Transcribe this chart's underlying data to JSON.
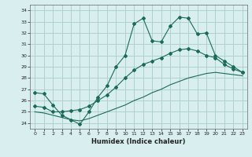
{
  "xlabel": "Humidex (Indice chaleur)",
  "xlim": [
    -0.5,
    23.5
  ],
  "ylim": [
    23.5,
    34.5
  ],
  "xticks": [
    0,
    1,
    2,
    3,
    4,
    5,
    6,
    7,
    8,
    9,
    10,
    11,
    12,
    13,
    14,
    15,
    16,
    17,
    18,
    19,
    20,
    21,
    22,
    23
  ],
  "yticks": [
    24,
    25,
    26,
    27,
    28,
    29,
    30,
    31,
    32,
    33,
    34
  ],
  "bg_color": "#d9eeee",
  "grid_color": "#b0d0d0",
  "line_color": "#1a6b5a",
  "line1_x": [
    0,
    1,
    2,
    3,
    4,
    5,
    6,
    7,
    8,
    9,
    10,
    11,
    12,
    13,
    14,
    15,
    16,
    17,
    18,
    19,
    20,
    21,
    22,
    23
  ],
  "line1_y": [
    26.7,
    26.6,
    25.6,
    24.7,
    24.3,
    23.9,
    25.0,
    26.3,
    27.3,
    29.0,
    30.0,
    32.8,
    33.3,
    31.3,
    31.2,
    32.6,
    33.4,
    33.3,
    31.9,
    32.0,
    30.0,
    29.5,
    29.0,
    28.5
  ],
  "line2_x": [
    0,
    1,
    2,
    3,
    4,
    5,
    6,
    7,
    8,
    9,
    10,
    11,
    12,
    13,
    14,
    15,
    16,
    17,
    18,
    19,
    20,
    21,
    22,
    23
  ],
  "line2_y": [
    25.5,
    25.4,
    25.0,
    25.0,
    25.1,
    25.2,
    25.5,
    26.0,
    26.5,
    27.2,
    28.0,
    28.7,
    29.2,
    29.5,
    29.8,
    30.2,
    30.5,
    30.6,
    30.4,
    30.0,
    29.8,
    29.2,
    28.8,
    28.5
  ],
  "line3_x": [
    0,
    1,
    2,
    3,
    4,
    5,
    6,
    7,
    8,
    9,
    10,
    11,
    12,
    13,
    14,
    15,
    16,
    17,
    18,
    19,
    20,
    21,
    22,
    23
  ],
  "line3_y": [
    25.0,
    24.9,
    24.7,
    24.5,
    24.3,
    24.2,
    24.4,
    24.7,
    25.0,
    25.3,
    25.6,
    26.0,
    26.3,
    26.7,
    27.0,
    27.4,
    27.7,
    28.0,
    28.2,
    28.4,
    28.5,
    28.4,
    28.3,
    28.2
  ]
}
